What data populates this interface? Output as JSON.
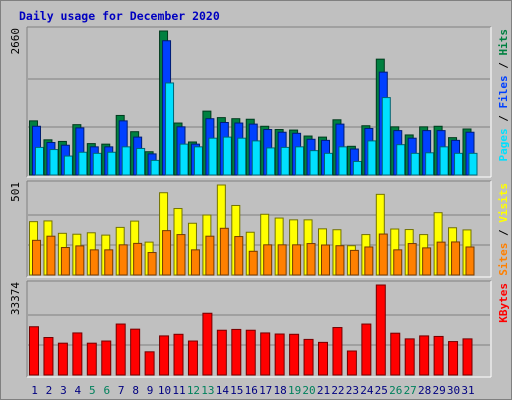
{
  "chart_data": {
    "type": "bar",
    "title": "Daily usage for December 2020",
    "categories": [
      "1",
      "2",
      "3",
      "4",
      "5",
      "6",
      "7",
      "8",
      "9",
      "10",
      "11",
      "12",
      "13",
      "14",
      "15",
      "16",
      "17",
      "18",
      "19",
      "20",
      "21",
      "22",
      "23",
      "24",
      "25",
      "26",
      "27",
      "28",
      "29",
      "30",
      "31"
    ],
    "weekend_days": [
      "5",
      "6",
      "12",
      "13",
      "19",
      "20",
      "26",
      "27"
    ],
    "panels": [
      {
        "id": "hits_files_pages",
        "max_label": "2660",
        "ylim": [
          0,
          2660
        ],
        "series": [
          {
            "name": "Hits",
            "color": "#008040",
            "values": [
              1000,
              650,
              620,
              930,
              580,
              570,
              1100,
              800,
              430,
              2660,
              960,
              610,
              1180,
              1060,
              1040,
              1030,
              900,
              840,
              830,
              720,
              700,
              1020,
              530,
              910,
              2140,
              890,
              740,
              890,
              900,
              690,
              850
            ]
          },
          {
            "name": "Files",
            "color": "#0040ff",
            "values": [
              900,
              600,
              550,
              870,
              520,
              520,
              1000,
              700,
              390,
              2480,
              890,
              570,
              1040,
              970,
              960,
              940,
              840,
              790,
              770,
              660,
              640,
              940,
              480,
              860,
              1900,
              820,
              680,
              820,
              820,
              640,
              790
            ]
          },
          {
            "name": "Pages",
            "color": "#00e0ff",
            "values": [
              510,
              470,
              350,
              420,
              400,
              420,
              520,
              490,
              270,
              1700,
              570,
              520,
              680,
              700,
              680,
              630,
              500,
              510,
              520,
              450,
              400,
              520,
              250,
              630,
              1430,
              560,
              400,
              410,
              520,
              400,
              400
            ]
          }
        ],
        "axis_label_parts": [
          {
            "text": "Pages",
            "color": "#00e0ff"
          },
          {
            "text": " / ",
            "color": "#000000"
          },
          {
            "text": "Files",
            "color": "#0040ff"
          },
          {
            "text": " / ",
            "color": "#000000"
          },
          {
            "text": "Hits",
            "color": "#008040"
          }
        ]
      },
      {
        "id": "visits_sites",
        "max_label": "501",
        "ylim": [
          0,
          501
        ],
        "series": [
          {
            "name": "Visits",
            "color": "#ffff00",
            "values": [
              297,
              301,
              232,
              227,
              235,
              222,
              265,
              300,
              183,
              458,
              370,
              288,
              334,
              501,
              387,
              238,
              338,
              317,
              307,
              307,
              257,
              252,
              163,
              225,
              449,
              256,
              253,
              225,
              347,
              263,
              251
            ]
          },
          {
            "name": "Sites",
            "color": "#ff8000",
            "values": [
              193,
              216,
              153,
              162,
              140,
              140,
              168,
              176,
              125,
              247,
              225,
              140,
              216,
              260,
              214,
              132,
              168,
              168,
              168,
              175,
              167,
              163,
              137,
              156,
              228,
              140,
              175,
              151,
              183,
              184,
              156
            ]
          }
        ],
        "axis_label_parts": [
          {
            "text": "Sites",
            "color": "#ff8000"
          },
          {
            "text": " / ",
            "color": "#000000"
          },
          {
            "text": "Visits",
            "color": "#ffff00"
          }
        ]
      },
      {
        "id": "kbytes",
        "max_label": "33374",
        "ylim": [
          0,
          33374
        ],
        "series": [
          {
            "name": "KBytes",
            "color": "#ff0000",
            "values": [
              17900,
              13900,
              11800,
              15600,
              11800,
              12600,
              18900,
              17000,
              8600,
              14500,
              15100,
              12600,
              22900,
              16600,
              16900,
              16600,
              15600,
              15200,
              15100,
              13200,
              12100,
              17600,
              8900,
              18900,
              33374,
              15500,
              13400,
              14500,
              14300,
              12400,
              13400
            ]
          }
        ],
        "axis_label_parts": [
          {
            "text": "KBytes",
            "color": "#ff0000"
          }
        ]
      }
    ],
    "weekday_label_color": "#000080",
    "weekend_label_color": "#00805c"
  }
}
